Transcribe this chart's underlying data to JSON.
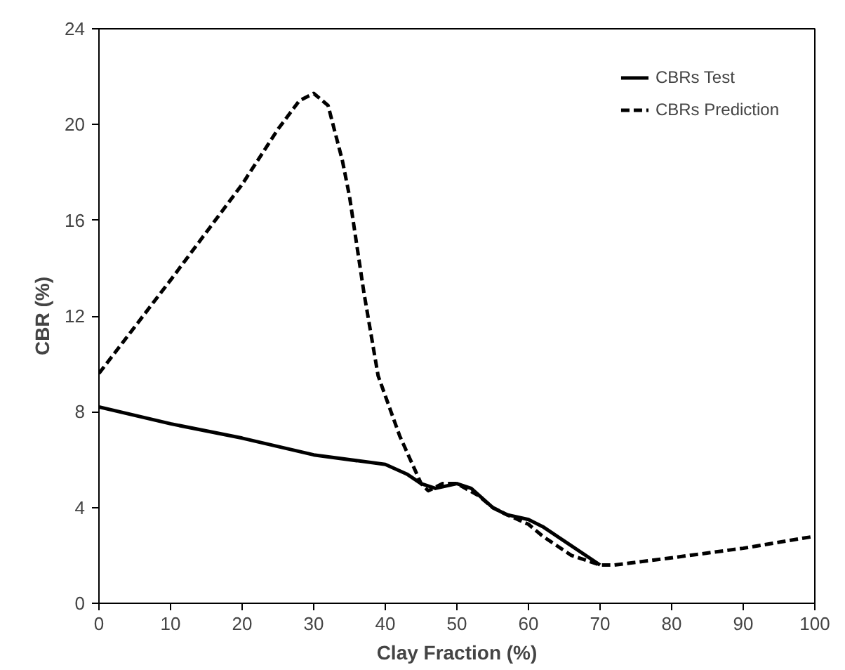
{
  "chart_data": {
    "type": "line",
    "xlabel": "Clay Fraction (%)",
    "ylabel": "CBR (%)",
    "xlim": [
      0,
      100
    ],
    "ylim": [
      0,
      24
    ],
    "xticks": [
      0,
      10,
      20,
      30,
      40,
      50,
      60,
      70,
      80,
      90,
      100
    ],
    "yticks": [
      0,
      4,
      8,
      12,
      16,
      20,
      24
    ],
    "grid": false,
    "legend": "top right",
    "marker": "none",
    "series": [
      {
        "name": "CBRs Test",
        "color": "#000000",
        "line_style": "solid",
        "x": [
          0,
          10,
          20,
          30,
          40,
          43,
          45,
          47,
          50,
          52,
          55,
          57,
          60,
          62,
          65,
          70
        ],
        "values": [
          8.2,
          7.5,
          6.9,
          6.2,
          5.8,
          5.4,
          5.0,
          4.8,
          5.0,
          4.8,
          4.0,
          3.7,
          3.5,
          3.2,
          2.6,
          1.6
        ]
      },
      {
        "name": "CBRs Prediction",
        "color": "#000000",
        "line_style": "dashed",
        "x": [
          0,
          10,
          20,
          25,
          28,
          30,
          32,
          34,
          35,
          37,
          39,
          42,
          45,
          46,
          48,
          50,
          53,
          55,
          57,
          60,
          62,
          66,
          70,
          72,
          80,
          90,
          100
        ],
        "values": [
          9.6,
          13.5,
          17.5,
          19.8,
          21.0,
          21.3,
          20.8,
          18.5,
          17,
          13,
          9.5,
          7,
          5,
          4.7,
          5,
          5,
          4.5,
          4,
          3.7,
          3.3,
          2.8,
          2,
          1.6,
          1.6,
          1.9,
          2.3,
          2.8
        ]
      }
    ]
  }
}
